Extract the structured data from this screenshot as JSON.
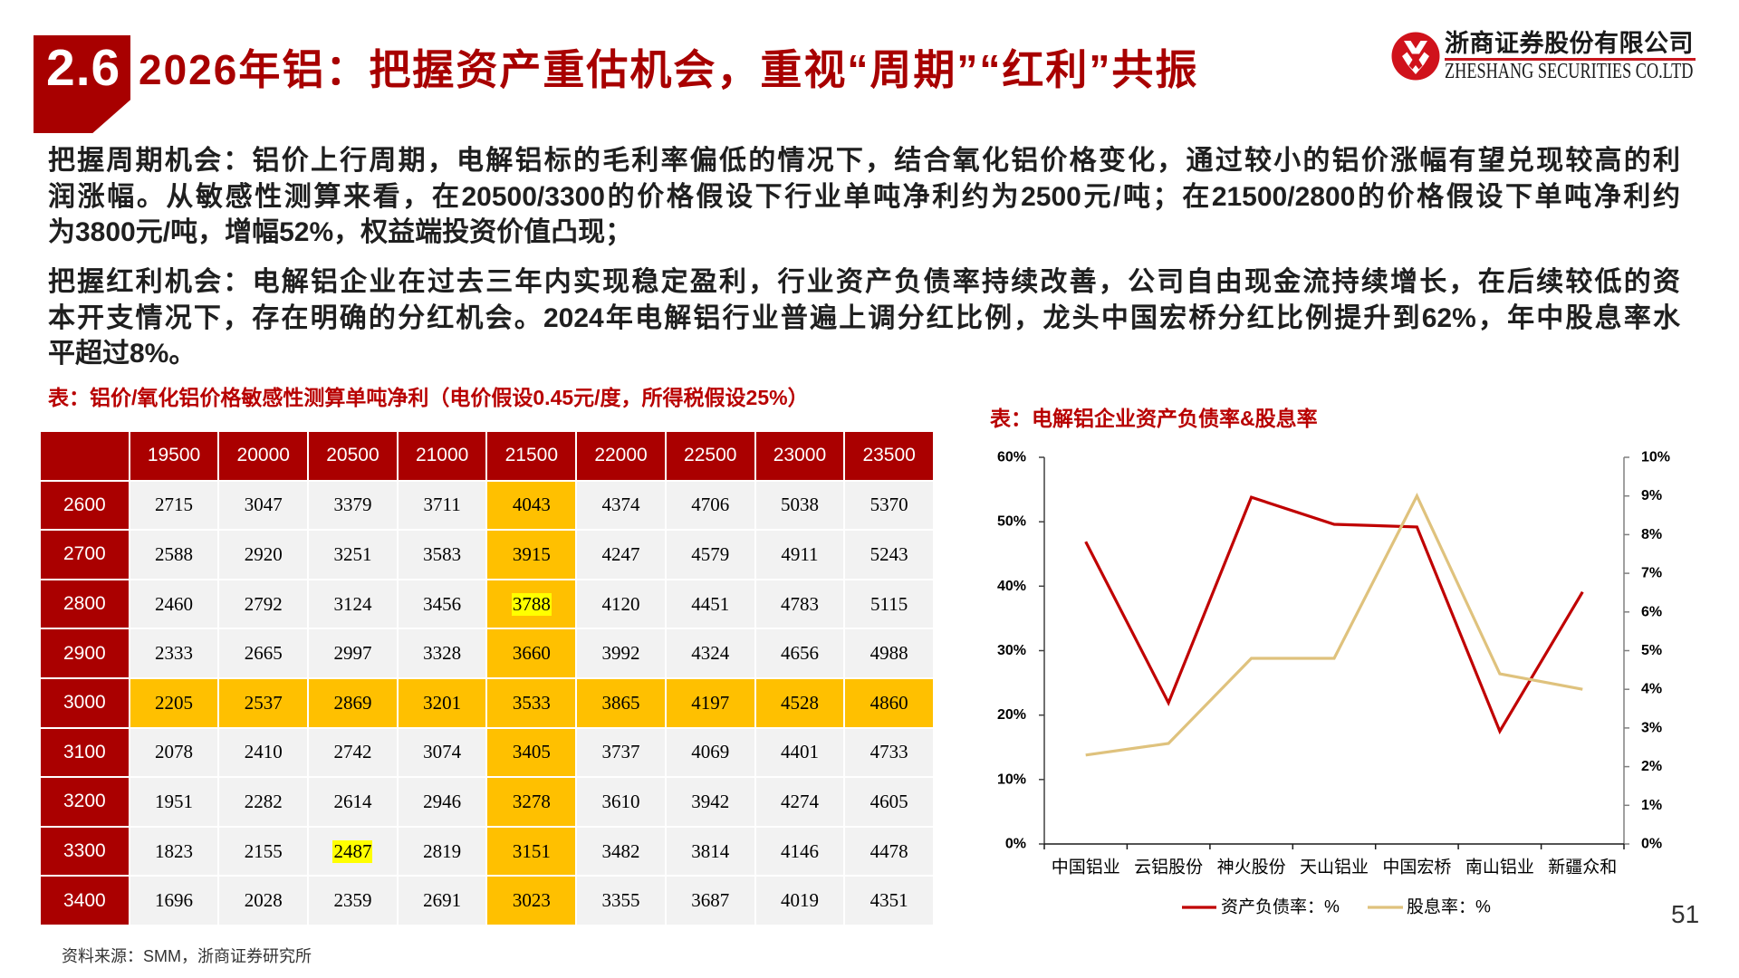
{
  "header": {
    "section_number": "2.6",
    "title": "2026年铝：把握资产重估机会，重视“周期”“红利”共振",
    "logo": {
      "name_cn": "浙商证券股份有限公司",
      "name_en": "ZHESHANG SECURITIES CO.LTD",
      "icon": "zheshang-logo-icon"
    }
  },
  "body": {
    "paragraphs": [
      {
        "topic": "把握周期机会",
        "lines": [
          "把握周期机会：铝价上行周期，电解铝标的毛利率偏低的情况下，结合氧化铝价格变化，通过较小的铝价涨幅有望兑现较高的利",
          "润涨幅。从敏感性测算来看，在20500/3300的价格假设下行业单吨净利约为2500元/吨；在21500/2800的价格假设下单吨净利约",
          "为3800元/吨，增幅52%，权益端投资价值凸现；"
        ]
      },
      {
        "topic": "把握红利机会",
        "lines": [
          "把握红利机会：电解铝企业在过去三年内实现稳定盈利，行业资产负债率持续改善，公司自由现金流持续增长，在后续较低的资",
          "本开支情况下，存在明确的分红机会。2024年电解铝行业普遍上调分红比例，龙头中国宏桥分红比例提升到62%，年中股息率水",
          "平超过8%。"
        ]
      }
    ]
  },
  "sensitivity_table": {
    "caption": "表：铝价/氧化铝价格敏感性测算单吨净利（电价假设0.45元/度，所得税假设25%）",
    "corner": "",
    "columns": [
      "19500",
      "20000",
      "20500",
      "21000",
      "21500",
      "22000",
      "22500",
      "23000",
      "23500"
    ],
    "rows": [
      {
        "label": "2600",
        "values": [
          "2715",
          "3047",
          "3379",
          "3711",
          "4043",
          "4374",
          "4706",
          "5038",
          "5370"
        ]
      },
      {
        "label": "2700",
        "values": [
          "2588",
          "2920",
          "3251",
          "3583",
          "3915",
          "4247",
          "4579",
          "4911",
          "5243"
        ]
      },
      {
        "label": "2800",
        "values": [
          "2460",
          "2792",
          "3124",
          "3456",
          "3788",
          "4120",
          "4451",
          "4783",
          "5115"
        ]
      },
      {
        "label": "2900",
        "values": [
          "2333",
          "2665",
          "2997",
          "3328",
          "3660",
          "3992",
          "4324",
          "4656",
          "4988"
        ]
      },
      {
        "label": "3000",
        "values": [
          "2205",
          "2537",
          "2869",
          "3201",
          "3533",
          "3865",
          "4197",
          "4528",
          "4860"
        ]
      },
      {
        "label": "3100",
        "values": [
          "2078",
          "2410",
          "2742",
          "3074",
          "3405",
          "3737",
          "4069",
          "4401",
          "4733"
        ]
      },
      {
        "label": "3200",
        "values": [
          "1951",
          "2282",
          "2614",
          "2946",
          "3278",
          "3610",
          "3942",
          "4274",
          "4605"
        ]
      },
      {
        "label": "3300",
        "values": [
          "1823",
          "2155",
          "2487",
          "2819",
          "3151",
          "3482",
          "3814",
          "4146",
          "4478"
        ]
      },
      {
        "label": "3400",
        "values": [
          "1696",
          "2028",
          "2359",
          "2691",
          "3023",
          "3355",
          "3687",
          "4019",
          "4351"
        ]
      }
    ],
    "highlight_column": "21500",
    "highlight_row": "3000",
    "marked_cells": [
      {
        "row": "2800",
        "column": "21500",
        "value": "3788"
      },
      {
        "row": "3300",
        "column": "20500",
        "value": "2487"
      }
    ],
    "colors": {
      "header_bg": "#AA0000",
      "cell_bg": "#F2F2F2",
      "highlight_bg": "#FFC000",
      "mark_bg": "#FFFF00"
    }
  },
  "chart_data": {
    "type": "line",
    "title": "表：电解铝企业资产负债率&股息率",
    "categories": [
      "中国铝业",
      "云铝股份",
      "神火股份",
      "天山铝业",
      "中国宏桥",
      "南山铝业",
      "新疆众和"
    ],
    "series": [
      {
        "name": "资产负债率：%",
        "axis": "left",
        "color": "#C00000",
        "values": [
          46.9,
          21.9,
          53.8,
          49.6,
          49.2,
          17.5,
          39.1
        ]
      },
      {
        "name": "股息率：%",
        "axis": "right",
        "color": "#DFC27D",
        "values": [
          2.3,
          2.6,
          4.8,
          4.8,
          9.0,
          4.4,
          4.0
        ]
      }
    ],
    "y_left": {
      "range": [
        0,
        60
      ],
      "ticks": [
        "0%",
        "10%",
        "20%",
        "30%",
        "40%",
        "50%",
        "60%"
      ]
    },
    "y_right": {
      "range": [
        0,
        10
      ],
      "ticks": [
        "0%",
        "1%",
        "2%",
        "3%",
        "4%",
        "5%",
        "6%",
        "7%",
        "8%",
        "9%",
        "10%"
      ]
    },
    "xlabel": "",
    "ylabel": "",
    "grid": false,
    "legend_position": "bottom"
  },
  "footer": {
    "source": "资料来源：SMM，浙商证券研究所",
    "page_number": "51"
  }
}
